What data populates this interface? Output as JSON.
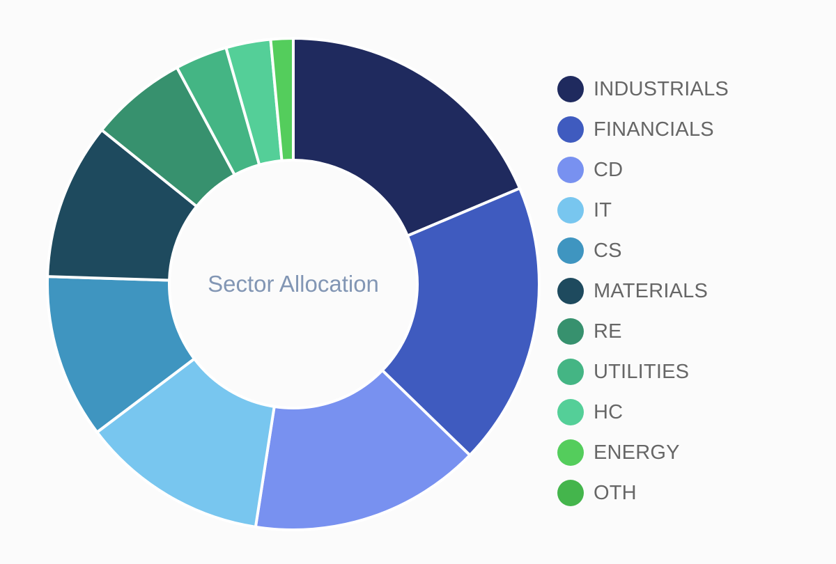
{
  "chart_data": {
    "type": "pie",
    "variant": "donut",
    "center_text": "Sector Allocation",
    "legend_position": "right",
    "slices": [
      {
        "label": "INDUSTRIALS",
        "value": 19.0,
        "color": "#1f2a5e"
      },
      {
        "label": "FINANCIALS",
        "value": 19.0,
        "color": "#3f5bbf"
      },
      {
        "label": "CD",
        "value": 15.5,
        "color": "#7891f0"
      },
      {
        "label": "IT",
        "value": 12.5,
        "color": "#78c6ef"
      },
      {
        "label": "CS",
        "value": 11.0,
        "color": "#3f95c0"
      },
      {
        "label": "MATERIALS",
        "value": 10.5,
        "color": "#1e4a5e"
      },
      {
        "label": "RE",
        "value": 6.5,
        "color": "#37916e"
      },
      {
        "label": "UTILITIES",
        "value": 3.5,
        "color": "#44b584"
      },
      {
        "label": "HC",
        "value": 3.0,
        "color": "#54cf98"
      },
      {
        "label": "ENERGY",
        "value": 1.5,
        "color": "#54cd5c"
      },
      {
        "label": "OTH",
        "value": 0.0,
        "color": "#44b54c"
      }
    ]
  }
}
